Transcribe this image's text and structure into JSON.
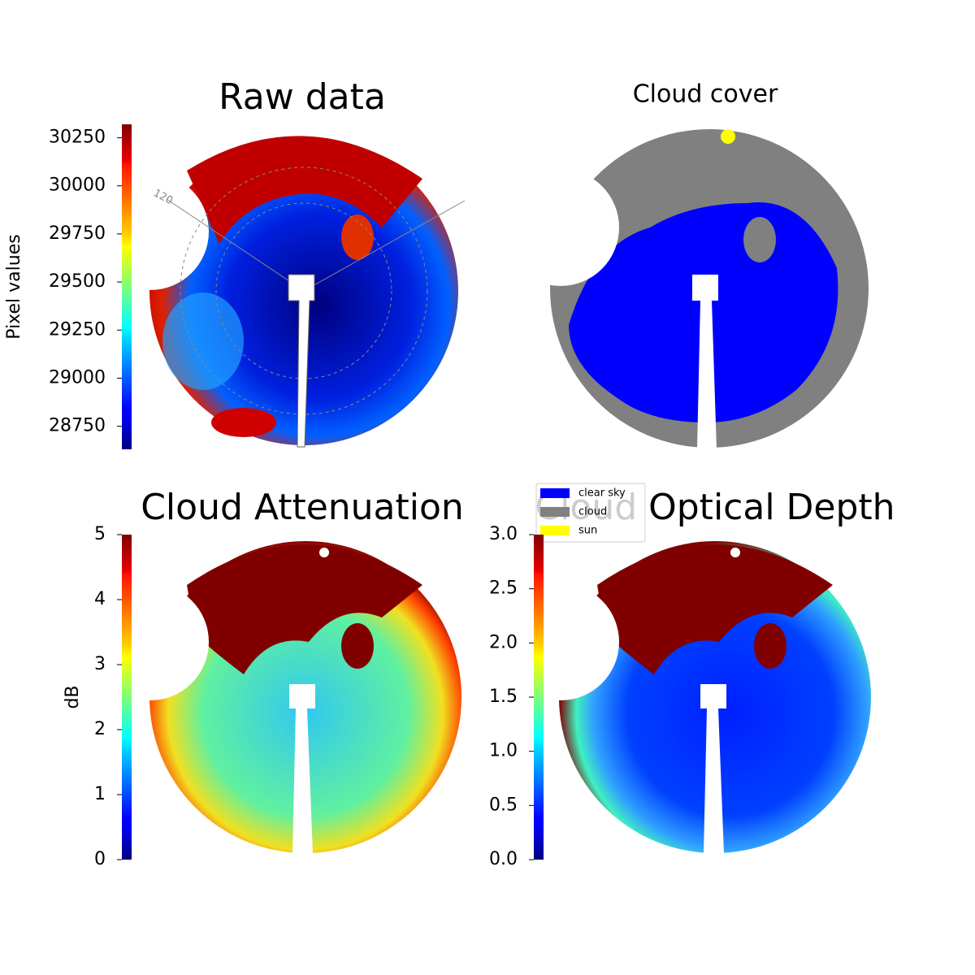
{
  "chart_data": [
    {
      "type": "image",
      "title": "Raw data",
      "annotations": [
        "120"
      ],
      "colorbar": {
        "label": "Pixel values",
        "colormap": "jet",
        "lim": [
          28630,
          30320
        ],
        "ticks": [
          28750,
          29000,
          29250,
          29500,
          29750,
          30000,
          30250
        ]
      }
    },
    {
      "type": "image",
      "title": "Cloud cover",
      "series": [
        {
          "name": "clear sky",
          "color": "#0000ff"
        },
        {
          "name": "cloud",
          "color": "#808080"
        },
        {
          "name": "sun",
          "color": "#ffff00"
        }
      ]
    },
    {
      "type": "image",
      "title": "Cloud Attenuation",
      "colorbar": {
        "label": "dB",
        "colormap": "jet",
        "lim": [
          0,
          5
        ],
        "ticks": [
          0,
          1,
          2,
          3,
          4,
          5
        ]
      }
    },
    {
      "type": "image",
      "title": "Cloud Optical Depth",
      "colorbar": {
        "colormap": "jet",
        "lim": [
          0,
          3
        ],
        "ticks": [
          {
            "value": 0,
            "label": "0.0"
          },
          {
            "value": 0.5,
            "label": "0.5"
          },
          {
            "value": 1,
            "label": "1.0"
          },
          {
            "value": 1.5,
            "label": "1.5"
          },
          {
            "value": 2,
            "label": "2.0"
          },
          {
            "value": 2.5,
            "label": "2.5"
          },
          {
            "value": 3,
            "label": "3.0"
          }
        ]
      }
    }
  ]
}
